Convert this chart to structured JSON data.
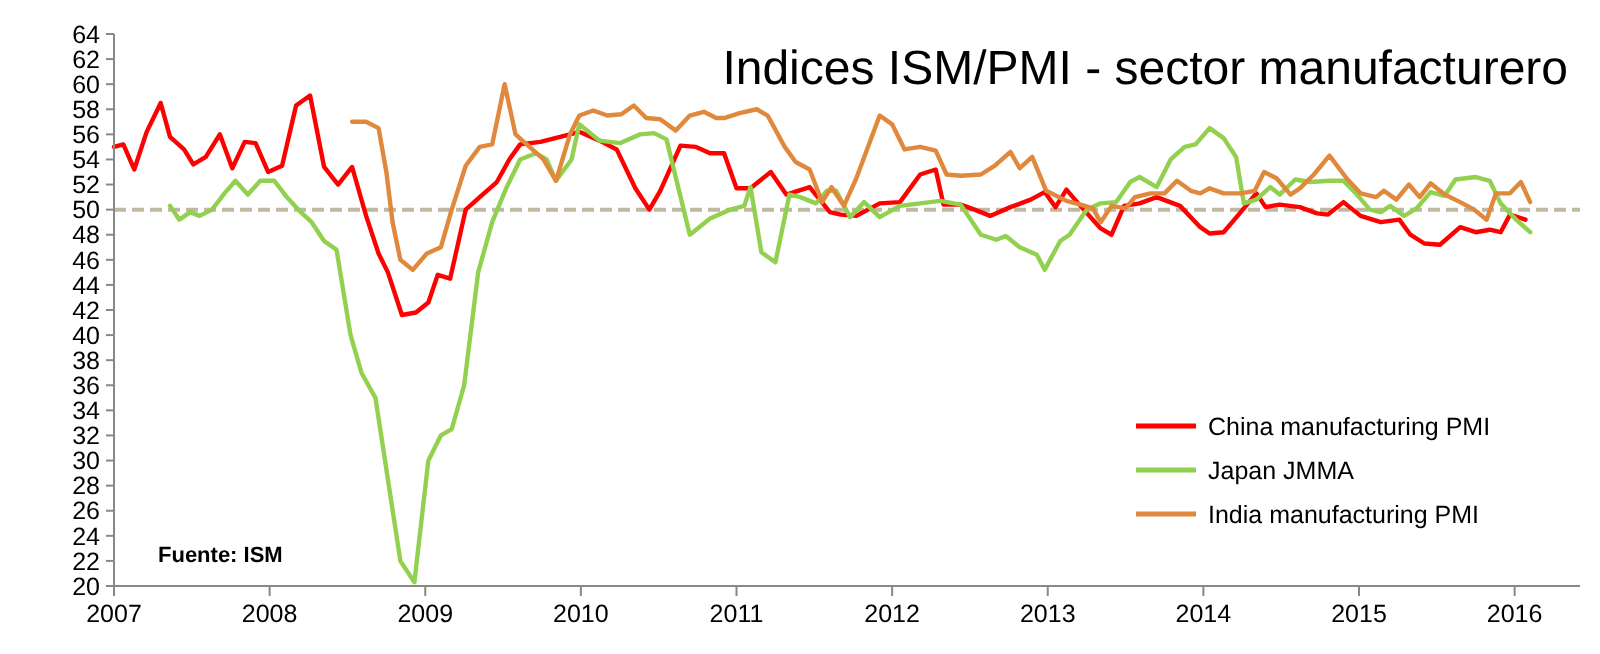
{
  "chart_data": {
    "type": "line",
    "title": "Indices ISM/PMI - sector manufacturero",
    "annotations": [
      "Fuente: ISM"
    ],
    "xlim": [
      2007,
      2016.42
    ],
    "xticks": [
      2007,
      2008,
      2009,
      2010,
      2011,
      2012,
      2013,
      2014,
      2015,
      2016
    ],
    "ylim": [
      20,
      64
    ],
    "yticks": [
      20,
      22,
      24,
      26,
      28,
      30,
      32,
      34,
      36,
      38,
      40,
      42,
      44,
      46,
      48,
      50,
      52,
      54,
      56,
      58,
      60,
      62,
      64
    ],
    "grid": false,
    "legend": "bottom right",
    "line_style": "solid",
    "marker": "none",
    "ref_lines": [
      {
        "axis": "y",
        "value": 50,
        "color": "#bfb8a3",
        "line_style": "dashed"
      }
    ],
    "series": [
      {
        "name": "China manufacturing PMI",
        "color": "#ff0000",
        "x": [
          2007.0,
          2007.06,
          2007.13,
          2007.21,
          2007.3,
          2007.36,
          2007.45,
          2007.51,
          2007.59,
          2007.68,
          2007.76,
          2007.84,
          2007.91,
          2007.99,
          2008.08,
          2008.17,
          2008.26,
          2008.35,
          2008.44,
          2008.53,
          2008.62,
          2008.7,
          2008.76,
          2008.85,
          2008.94,
          2009.02,
          2009.08,
          2009.16,
          2009.26,
          2009.35,
          2009.46,
          2009.54,
          2009.61,
          2009.74,
          2009.93,
          2009.99,
          2010.12,
          2010.23,
          2010.35,
          2010.44,
          2010.51,
          2010.64,
          2010.74,
          2010.83,
          2010.92,
          2011.0,
          2011.09,
          2011.22,
          2011.32,
          2011.47,
          2011.6,
          2011.67,
          2011.77,
          2011.92,
          2012.05,
          2012.18,
          2012.28,
          2012.33,
          2012.44,
          2012.53,
          2012.63,
          2012.76,
          2012.89,
          2012.98,
          2013.05,
          2013.12,
          2013.21,
          2013.34,
          2013.41,
          2013.49,
          2013.59,
          2013.7,
          2013.85,
          2013.98,
          2014.04,
          2014.13,
          2014.24,
          2014.34,
          2014.4,
          2014.49,
          2014.62,
          2014.73,
          2014.8,
          2014.9,
          2015.01,
          2015.14,
          2015.26,
          2015.33,
          2015.42,
          2015.52,
          2015.65,
          2015.75,
          2015.84,
          2015.91,
          2015.97,
          2016.07
        ],
        "values": [
          55,
          55.2,
          53.2,
          56.2,
          58.5,
          55.8,
          54.8,
          53.6,
          54.2,
          56,
          53.3,
          55.4,
          55.3,
          53,
          53.5,
          58.3,
          59.1,
          53.4,
          52,
          53.4,
          49.5,
          46.5,
          45,
          41.6,
          41.8,
          42.6,
          44.8,
          44.5,
          50,
          51,
          52.2,
          54,
          55.2,
          55.4,
          56,
          56.2,
          55.5,
          54.8,
          51.7,
          50,
          51.5,
          55.1,
          55,
          54.5,
          54.5,
          51.7,
          51.7,
          53,
          51.2,
          51.8,
          49.8,
          49.6,
          49.5,
          50.5,
          50.6,
          52.8,
          53.2,
          50.4,
          50.4,
          50,
          49.5,
          50.2,
          50.8,
          51.4,
          50.2,
          51.6,
          50.3,
          48.5,
          48,
          50.3,
          50.5,
          51,
          50.3,
          48.6,
          48.1,
          48.2,
          49.8,
          51.3,
          50.2,
          50.4,
          50.2,
          49.7,
          49.6,
          50.6,
          49.5,
          49,
          49.2,
          48,
          47.3,
          47.2,
          48.6,
          48.2,
          48.4,
          48.2,
          49.6,
          49.2
        ]
      },
      {
        "name": "Japan JMMA",
        "color": "#92d050",
        "x": [
          2007.36,
          2007.42,
          2007.49,
          2007.55,
          2007.63,
          2007.71,
          2007.78,
          2007.86,
          2007.94,
          2008.03,
          2008.11,
          2008.2,
          2008.27,
          2008.35,
          2008.43,
          2008.52,
          2008.59,
          2008.68,
          2008.84,
          2008.93,
          2009.02,
          2009.1,
          2009.17,
          2009.25,
          2009.34,
          2009.43,
          2009.52,
          2009.61,
          2009.71,
          2009.78,
          2009.84,
          2009.94,
          2009.99,
          2010.12,
          2010.25,
          2010.38,
          2010.47,
          2010.55,
          2010.7,
          2010.83,
          2010.96,
          2011.05,
          2011.09,
          2011.16,
          2011.25,
          2011.34,
          2011.41,
          2011.51,
          2011.58,
          2011.64,
          2011.73,
          2011.82,
          2011.92,
          2012.05,
          2012.18,
          2012.31,
          2012.44,
          2012.57,
          2012.67,
          2012.73,
          2012.82,
          2012.93,
          2012.98,
          2013.08,
          2013.14,
          2013.25,
          2013.34,
          2013.44,
          2013.53,
          2013.59,
          2013.7,
          2013.79,
          2013.88,
          2013.95,
          2014.04,
          2014.13,
          2014.21,
          2014.26,
          2014.34,
          2014.43,
          2014.49,
          2014.59,
          2014.69,
          2014.81,
          2014.9,
          2014.98,
          2015.07,
          2015.14,
          2015.2,
          2015.29,
          2015.37,
          2015.46,
          2015.55,
          2015.62,
          2015.75,
          2015.84,
          2015.91,
          2016.01,
          2016.1
        ],
        "values": [
          50.3,
          49.2,
          49.8,
          49.5,
          50,
          51.3,
          52.3,
          51.2,
          52.3,
          52.3,
          51,
          49.8,
          49,
          47.5,
          46.8,
          40,
          37,
          35,
          22,
          20.3,
          30,
          32,
          32.5,
          36,
          45,
          49,
          51.7,
          54,
          54.5,
          54,
          52.3,
          54,
          56.8,
          55.5,
          55.3,
          56,
          56.1,
          55.6,
          48,
          49.3,
          50,
          50.3,
          51.8,
          46.6,
          45.8,
          51.2,
          51,
          50.5,
          51.5,
          51.5,
          49.4,
          50.6,
          49.4,
          50.3,
          50.5,
          50.7,
          50.4,
          48,
          47.6,
          47.9,
          47,
          46.4,
          45.2,
          47.5,
          48,
          50,
          50.5,
          50.6,
          52.2,
          52.6,
          51.8,
          54,
          55,
          55.2,
          56.5,
          55.7,
          54.2,
          50.5,
          50.8,
          51.8,
          51.2,
          52.4,
          52.2,
          52.3,
          52.3,
          51.3,
          50,
          49.8,
          50.3,
          49.5,
          50.1,
          51.4,
          51.1,
          52.4,
          52.6,
          52.3,
          50.5,
          49.2,
          48.2
        ]
      },
      {
        "name": "India manufacturing PMI",
        "color": "#e0883c",
        "x": [
          2008.53,
          2008.62,
          2008.7,
          2008.75,
          2008.79,
          2008.84,
          2008.92,
          2009.01,
          2009.1,
          2009.17,
          2009.26,
          2009.35,
          2009.43,
          2009.51,
          2009.58,
          2009.67,
          2009.76,
          2009.84,
          2009.93,
          2009.99,
          2010.08,
          2010.17,
          2010.26,
          2010.34,
          2010.42,
          2010.51,
          2010.61,
          2010.7,
          2010.79,
          2010.87,
          2010.92,
          2011.02,
          2011.13,
          2011.2,
          2011.31,
          2011.38,
          2011.47,
          2011.55,
          2011.61,
          2011.69,
          2011.77,
          2011.92,
          2012.0,
          2012.08,
          2012.18,
          2012.28,
          2012.35,
          2012.44,
          2012.57,
          2012.66,
          2012.76,
          2012.82,
          2012.9,
          2012.99,
          2013.12,
          2013.21,
          2013.29,
          2013.34,
          2013.41,
          2013.5,
          2013.56,
          2013.66,
          2013.75,
          2013.83,
          2013.92,
          2013.98,
          2014.04,
          2014.13,
          2014.24,
          2014.33,
          2014.39,
          2014.47,
          2014.56,
          2014.62,
          2014.71,
          2014.81,
          2014.92,
          2015.01,
          2015.11,
          2015.16,
          2015.24,
          2015.32,
          2015.39,
          2015.46,
          2015.55,
          2015.65,
          2015.74,
          2015.82,
          2015.88,
          2015.97,
          2016.04,
          2016.1
        ],
        "values": [
          57,
          57,
          56.5,
          53,
          49,
          46,
          45.2,
          46.5,
          47,
          50,
          53.5,
          55,
          55.2,
          60,
          56,
          55,
          54,
          52.3,
          56,
          57.5,
          57.9,
          57.5,
          57.6,
          58.3,
          57.3,
          57.2,
          56.3,
          57.5,
          57.8,
          57.3,
          57.3,
          57.7,
          58,
          57.5,
          55,
          53.8,
          53.2,
          50.6,
          51.8,
          50.3,
          52.5,
          57.5,
          56.8,
          54.8,
          55,
          54.7,
          52.8,
          52.7,
          52.8,
          53.5,
          54.6,
          53.3,
          54.2,
          51.5,
          50.7,
          50.4,
          50.1,
          49,
          50.3,
          50.1,
          51,
          51.3,
          51.3,
          52.3,
          51.5,
          51.3,
          51.7,
          51.3,
          51.3,
          51.5,
          53,
          52.5,
          51.2,
          51.7,
          52.8,
          54.3,
          52.5,
          51.3,
          51,
          51.5,
          50.8,
          52,
          51,
          52.1,
          51.2,
          50.6,
          50,
          49.2,
          51.3,
          51.3,
          52.2,
          50.6
        ]
      }
    ]
  }
}
